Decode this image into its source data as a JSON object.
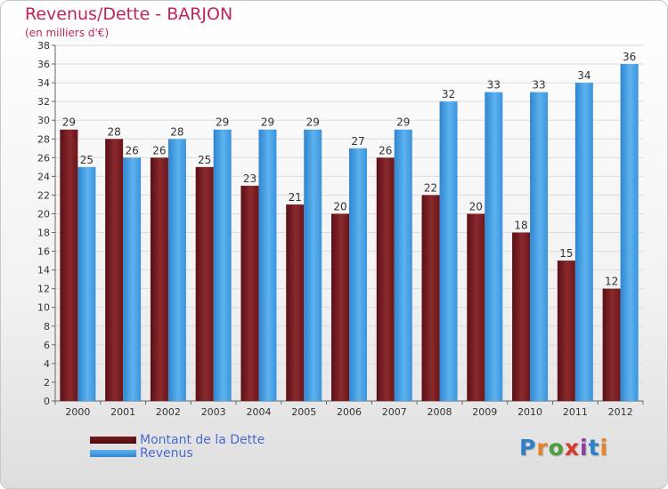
{
  "header": {
    "title": "Revenus/Dette - BARJON",
    "subtitle": "(en milliers d'€)"
  },
  "legend": {
    "items": [
      {
        "label": "Montant de la Dette",
        "color": "#7a1b1f"
      },
      {
        "label": "Revenus",
        "color": "#4aa3e4"
      }
    ]
  },
  "logo": {
    "text": "Proxiti",
    "letter_colors": [
      "#2f7fc8",
      "#e5852b",
      "#4b9e3b",
      "#d83a2e",
      "#8e3ea8",
      "#2f7fc8",
      "#e5852b"
    ]
  },
  "chart_data": {
    "type": "bar",
    "title": "Revenus/Dette - BARJON",
    "ylabel": "(en milliers d'€)",
    "xlabel": "",
    "ylim": [
      0,
      38
    ],
    "ytick_step": 2,
    "grid": true,
    "legend_position": "bottom-left",
    "categories": [
      "2000",
      "2001",
      "2002",
      "2003",
      "2004",
      "2005",
      "2006",
      "2007",
      "2008",
      "2009",
      "2010",
      "2011",
      "2012"
    ],
    "series": [
      {
        "name": "Montant de la Dette",
        "color": "#7a1b1f",
        "values": [
          29,
          28,
          26,
          25,
          23,
          21,
          20,
          26,
          22,
          20,
          18,
          15,
          12
        ]
      },
      {
        "name": "Revenus",
        "color": "#4aa3e4",
        "values": [
          25,
          26,
          28,
          29,
          29,
          29,
          27,
          29,
          32,
          33,
          33,
          34,
          36
        ]
      }
    ]
  }
}
